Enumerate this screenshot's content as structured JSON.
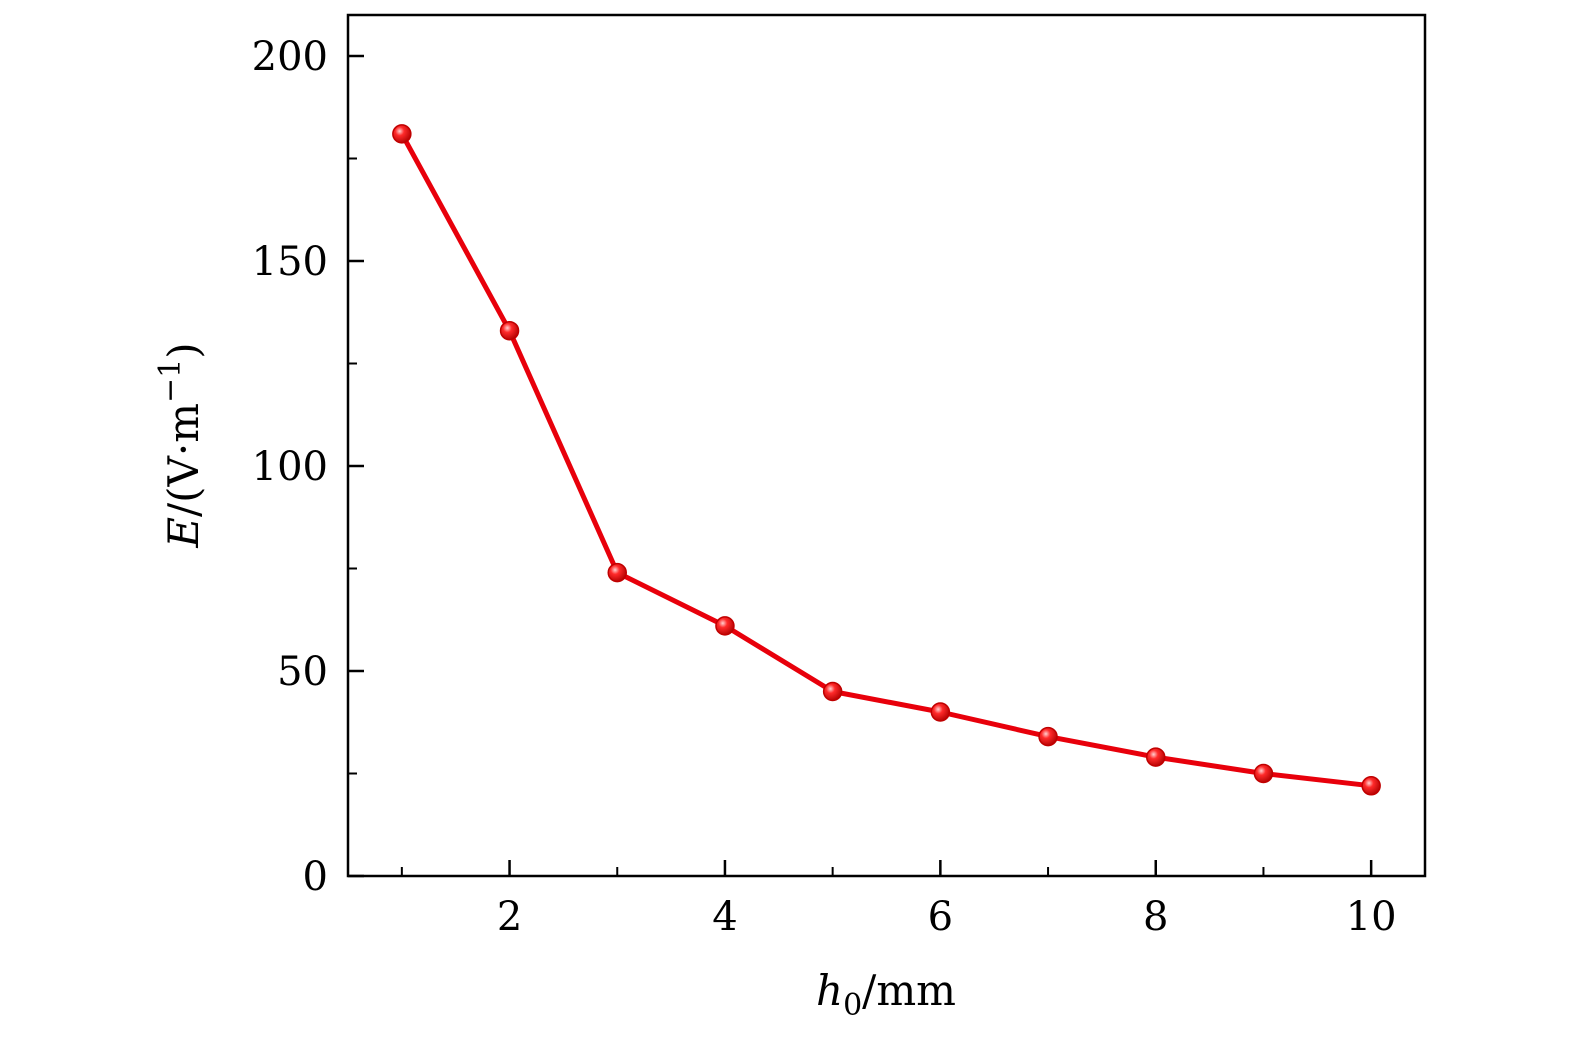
{
  "chart_data": {
    "type": "line",
    "title": "",
    "xlabel": {
      "symbol": "h",
      "subscript": "0",
      "unit": "/mm"
    },
    "ylabel": {
      "symbol": "E",
      "unit_open": "/(V·m",
      "unit_exponent": "−1",
      "unit_close": ")"
    },
    "xlim": [
      0.5,
      10.5
    ],
    "ylim": [
      0,
      210
    ],
    "x_major_ticks": [
      2,
      4,
      6,
      8,
      10
    ],
    "x_minor_ticks": [
      1,
      3,
      5,
      7,
      9
    ],
    "x_tick_labels": [
      "2",
      "4",
      "6",
      "8",
      "10"
    ],
    "y_major_ticks": [
      0,
      50,
      100,
      150,
      200
    ],
    "y_minor_ticks": [
      25,
      75,
      125,
      175
    ],
    "y_tick_labels": [
      "0",
      "50",
      "100",
      "150",
      "200"
    ],
    "grid": false,
    "series": [
      {
        "color": "#e8000b",
        "marker": "circle",
        "x": [
          1,
          2,
          3,
          4,
          5,
          6,
          7,
          8,
          9,
          10
        ],
        "y": [
          181,
          133,
          74,
          61,
          45,
          40,
          34,
          29,
          25,
          22
        ]
      }
    ]
  }
}
